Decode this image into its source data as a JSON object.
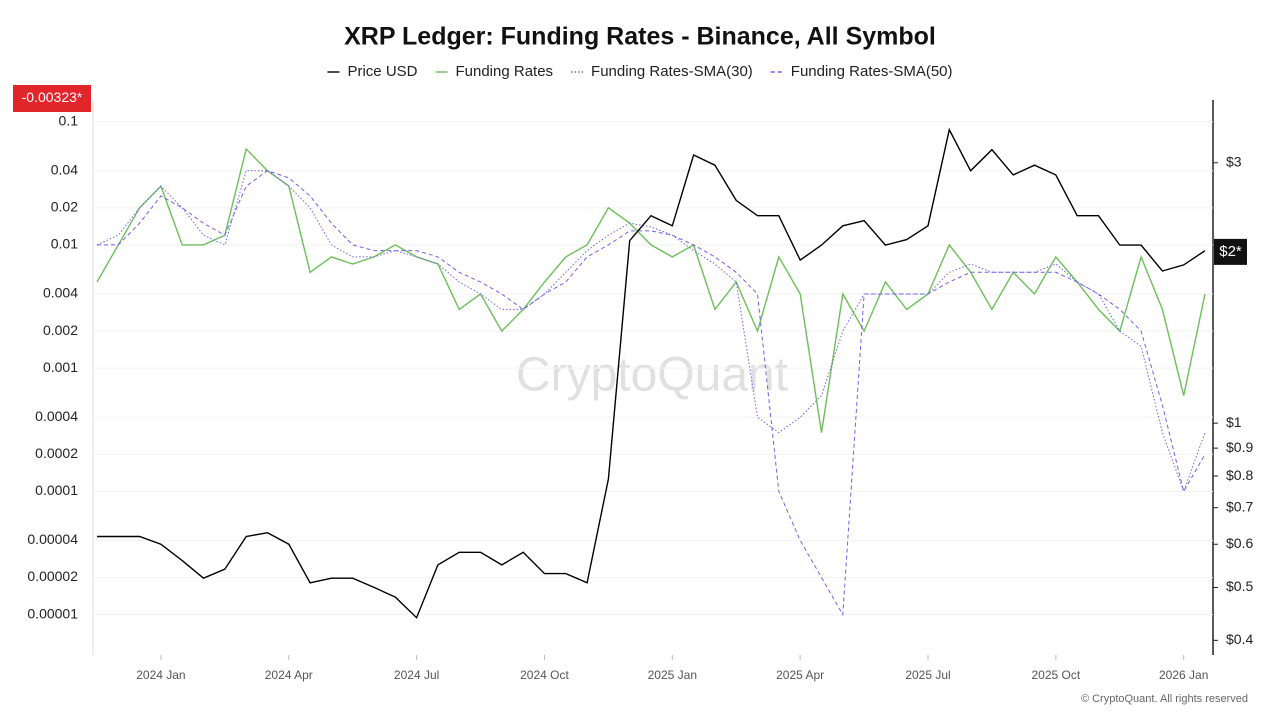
{
  "chart_data": {
    "type": "line",
    "title": "XRP Ledger: Funding Rates - Binance, All Symbol",
    "categories": [
      null,
      null,
      null,
      "2024 Jan",
      null,
      null,
      null,
      null,
      null,
      "2024 Apr",
      null,
      null,
      null,
      null,
      null,
      "2024 Jul",
      null,
      null,
      null,
      null,
      null,
      "2024 Oct",
      null,
      null,
      null,
      null,
      null,
      "2025 Jan",
      null,
      null,
      null,
      null,
      null,
      "2025 Apr",
      null,
      null,
      null,
      null,
      null,
      "2025 Jul",
      null,
      null,
      null,
      null,
      null,
      "2025 Oct",
      null,
      null,
      null,
      null,
      null,
      "2026 Jan",
      null
    ],
    "series": [
      {
        "name": "Price USD",
        "color": "#000000",
        "axis": "y2",
        "style": "solid",
        "values": [
          0.62,
          0.62,
          0.62,
          0.6,
          0.56,
          0.52,
          0.54,
          0.62,
          0.63,
          0.6,
          0.51,
          0.52,
          0.52,
          0.5,
          0.48,
          0.44,
          0.55,
          0.58,
          0.58,
          0.55,
          0.58,
          0.53,
          0.53,
          0.51,
          0.79,
          2.16,
          2.4,
          2.3,
          3.1,
          2.97,
          2.56,
          2.4,
          2.4,
          1.99,
          2.12,
          2.3,
          2.35,
          2.12,
          2.17,
          2.3,
          3.45,
          2.9,
          3.17,
          2.85,
          2.97,
          2.85,
          2.4,
          2.4,
          2.12,
          2.12,
          1.9,
          1.95,
          2.07
        ]
      },
      {
        "name": "Funding Rates",
        "color": "#6dbf5b",
        "style": "solid",
        "values": [
          0.005,
          0.01,
          0.02,
          0.03,
          0.01,
          0.01,
          0.012,
          0.06,
          0.04,
          0.03,
          0.006,
          0.008,
          0.007,
          0.008,
          0.01,
          0.008,
          0.007,
          0.003,
          0.004,
          0.002,
          0.003,
          0.005,
          0.008,
          0.01,
          0.02,
          0.015,
          0.01,
          0.008,
          0.01,
          0.003,
          0.005,
          0.002,
          0.008,
          0.004,
          0.0003,
          0.004,
          0.002,
          0.005,
          0.003,
          0.004,
          0.01,
          0.006,
          0.003,
          0.006,
          0.004,
          0.008,
          0.005,
          0.003,
          0.002,
          0.008,
          0.003,
          0.0006,
          0.004
        ]
      },
      {
        "name": "Funding Rates-SMA(30)",
        "color": "#6f63e8",
        "style": "dotted",
        "values": [
          0.01,
          0.012,
          0.02,
          0.03,
          0.02,
          0.012,
          0.01,
          0.04,
          0.04,
          0.03,
          0.02,
          0.01,
          0.008,
          0.008,
          0.009,
          0.008,
          0.007,
          0.005,
          0.004,
          0.003,
          0.003,
          0.004,
          0.006,
          0.009,
          0.012,
          0.015,
          0.014,
          0.012,
          0.009,
          0.007,
          0.005,
          0.0004,
          0.0003,
          0.0004,
          0.0006,
          0.002,
          0.004,
          0.004,
          0.004,
          0.004,
          0.006,
          0.007,
          0.006,
          0.006,
          0.006,
          0.007,
          0.005,
          0.004,
          0.002,
          0.0015,
          0.0003,
          0.0001,
          0.0003
        ]
      },
      {
        "name": "Funding Rates-SMA(50)",
        "color": "#6f63e8",
        "style": "dashed",
        "values": [
          0.01,
          0.01,
          0.015,
          0.025,
          0.02,
          0.015,
          0.012,
          0.03,
          0.04,
          0.035,
          0.025,
          0.015,
          0.01,
          0.009,
          0.009,
          0.009,
          0.008,
          0.006,
          0.005,
          0.004,
          0.003,
          0.004,
          0.005,
          0.008,
          0.01,
          0.013,
          0.013,
          0.012,
          0.01,
          0.008,
          0.006,
          0.004,
          0.0001,
          4e-05,
          2e-05,
          1e-05,
          0.004,
          0.004,
          0.004,
          0.004,
          0.005,
          0.006,
          0.006,
          0.006,
          0.006,
          0.006,
          0.005,
          0.004,
          0.003,
          0.002,
          0.0005,
          0.0001,
          0.0002
        ]
      }
    ],
    "ylog": true,
    "ylim": [
      4.7e-06,
      0.15
    ],
    "yticks": [
      0.1,
      0.04,
      0.02,
      0.01,
      0.004,
      0.002,
      0.001,
      0.0004,
      0.0002,
      0.0001,
      4e-05,
      2e-05,
      1e-05
    ],
    "y2log": true,
    "y2lim": [
      0.376,
      3.91
    ],
    "y2ticks": [
      {
        "value": 3,
        "label": "$3"
      },
      {
        "value": 1,
        "label": "$1"
      },
      {
        "value": 0.9,
        "label": "$0.9"
      },
      {
        "value": 0.8,
        "label": "$0.8"
      },
      {
        "value": 0.7,
        "label": "$0.7"
      },
      {
        "value": 0.6,
        "label": "$0.6"
      },
      {
        "value": 0.5,
        "label": "$0.5"
      },
      {
        "value": 0.4,
        "label": "$0.4"
      }
    ],
    "grid": true,
    "legend": "top",
    "current_funding": "-0.00323*",
    "current_price": {
      "value": 2.06,
      "label": "$2*"
    },
    "watermark": "CryptoQuant",
    "footer": "© CryptoQuant. All rights reserved"
  }
}
